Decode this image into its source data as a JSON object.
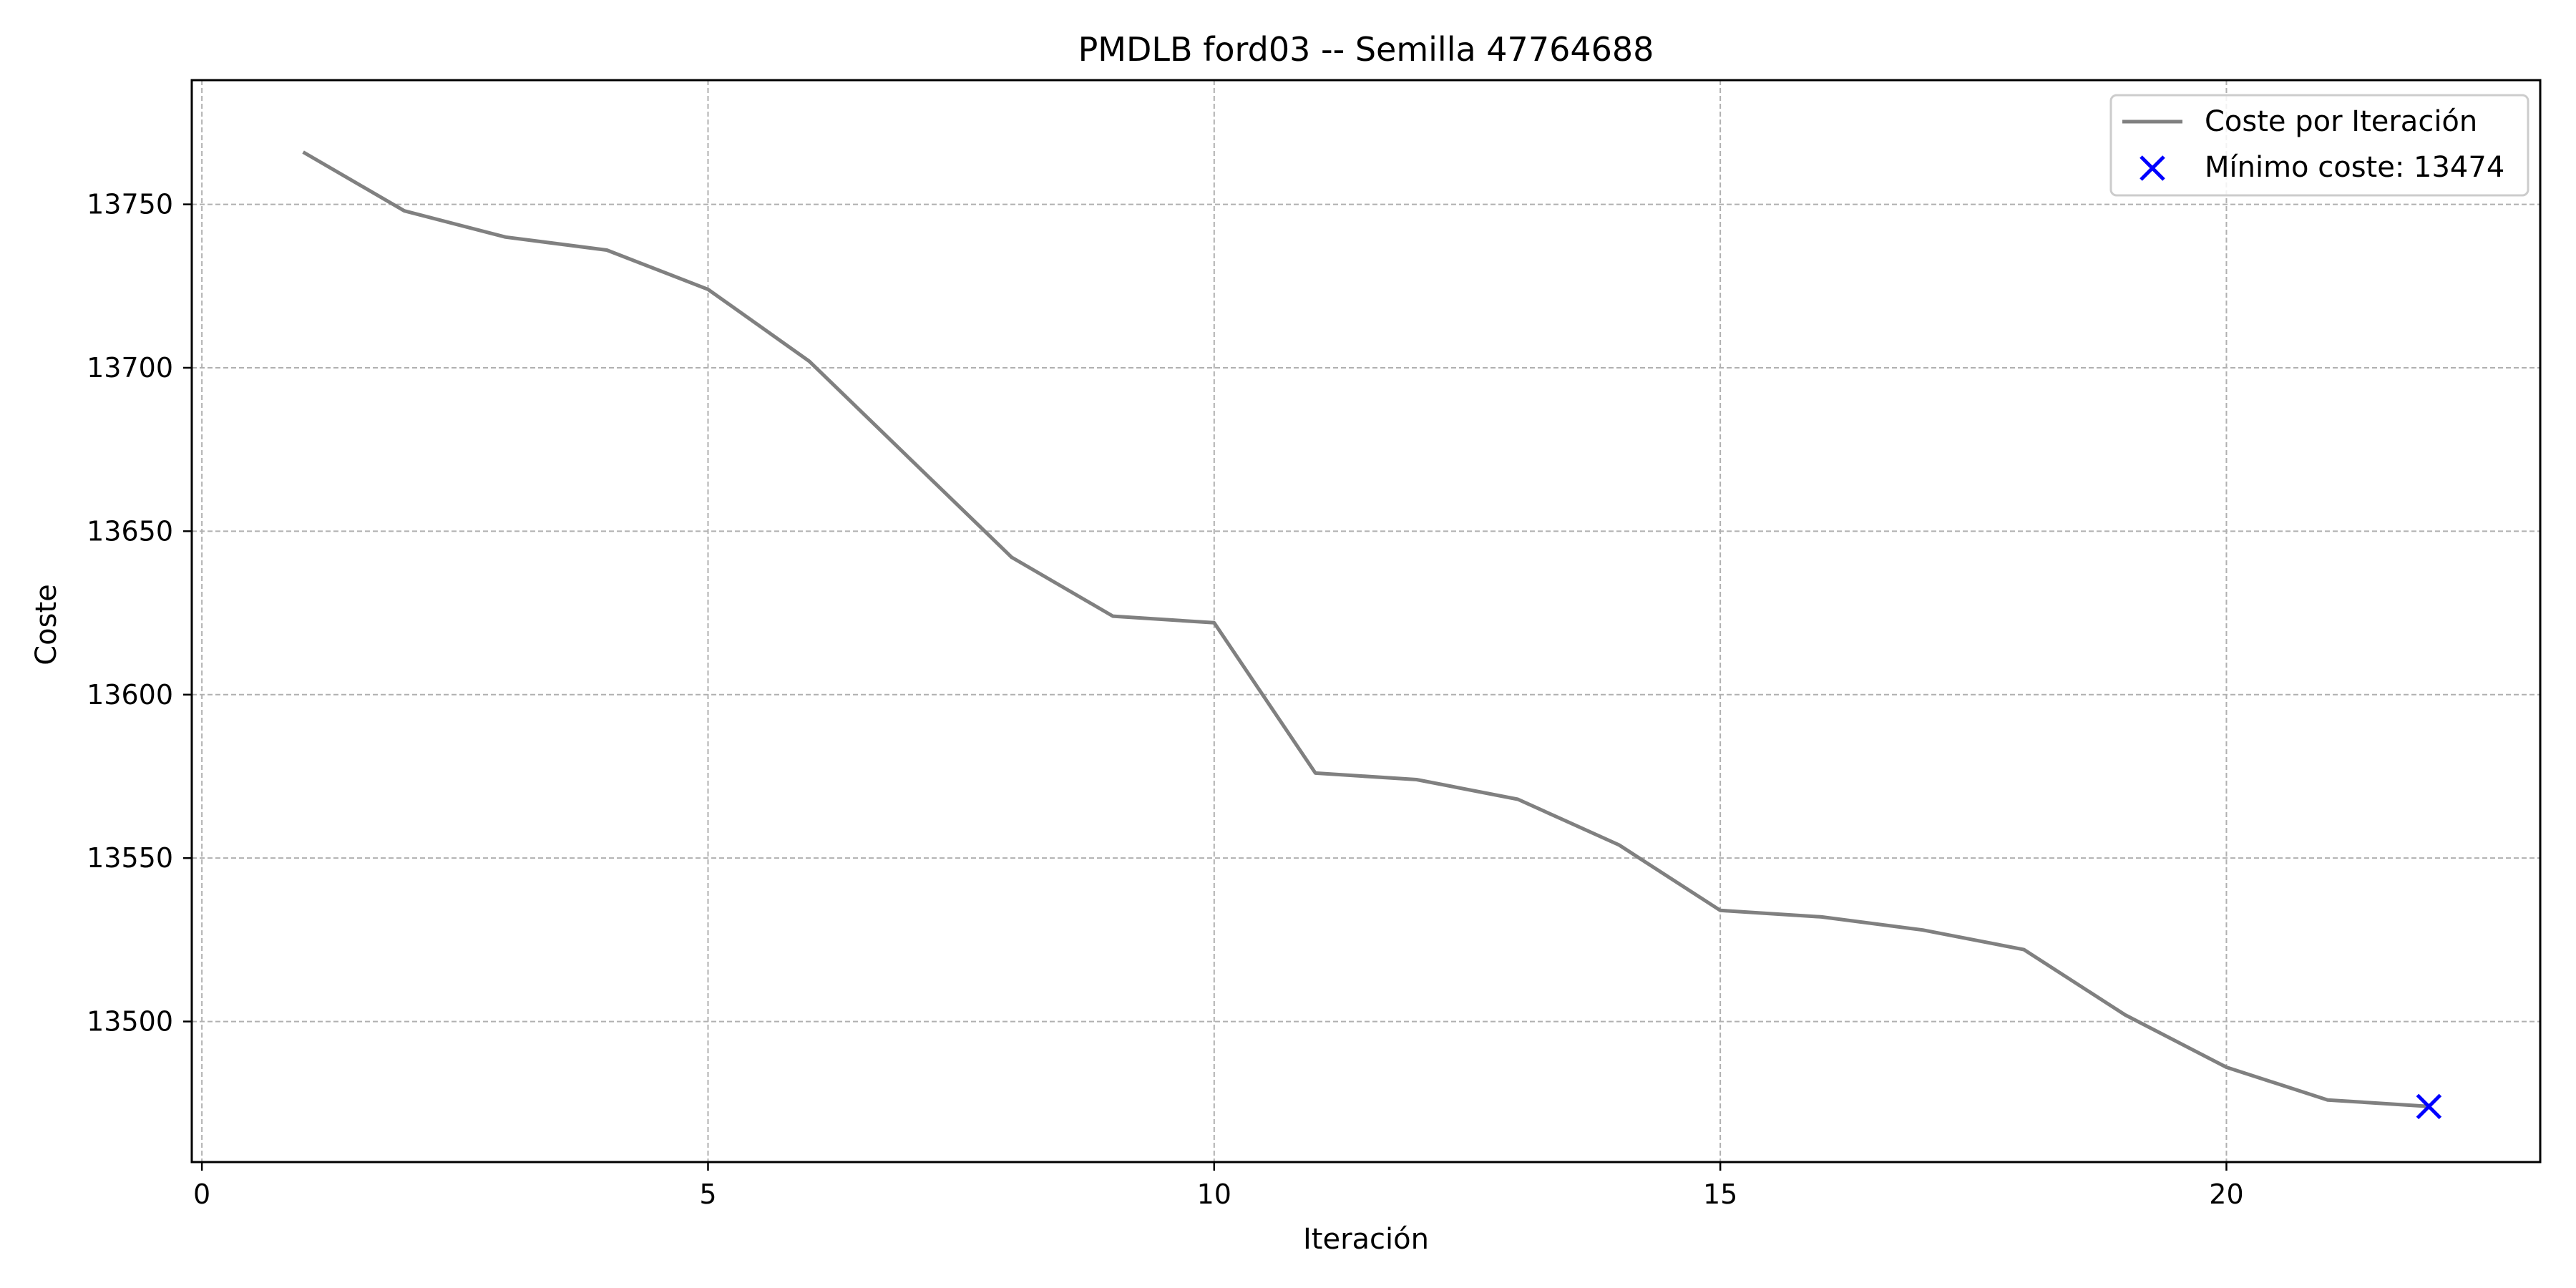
{
  "chart_data": {
    "type": "line",
    "title": "PMDLB ford03 -- Semilla 47764688",
    "xlabel": "Iteración",
    "ylabel": "Coste",
    "xlim": [
      -0.1,
      23.1
    ],
    "ylim": [
      13457,
      13788
    ],
    "xticks": [
      0,
      5,
      10,
      15,
      20
    ],
    "yticks": [
      13500,
      13550,
      13600,
      13650,
      13700,
      13750
    ],
    "grid": true,
    "grid_style": "dashed",
    "legend_position": "top-right",
    "series": [
      {
        "name": "Coste por Iteración",
        "color": "#808080",
        "x": [
          1,
          2,
          3,
          4,
          5,
          6,
          7,
          8,
          9,
          10,
          11,
          12,
          13,
          14,
          15,
          16,
          17,
          18,
          19,
          20,
          21,
          22
        ],
        "y": [
          13766,
          13748,
          13740,
          13736,
          13724,
          13702,
          13672,
          13642,
          13624,
          13622,
          13576,
          13574,
          13568,
          13554,
          13534,
          13532,
          13528,
          13522,
          13502,
          13486,
          13476,
          13474
        ]
      }
    ],
    "markers": [
      {
        "name": "Mínimo coste: 13474",
        "marker": "x",
        "color": "#0000ff",
        "x": 22,
        "y": 13474
      }
    ]
  }
}
